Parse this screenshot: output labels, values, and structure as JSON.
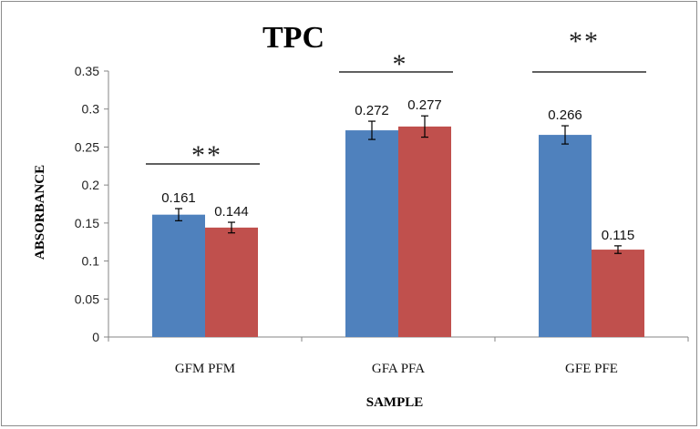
{
  "chart_data": {
    "type": "bar",
    "title": "TPC",
    "xlabel": "SAMPLE",
    "ylabel": "ABSORBANCE",
    "ylim": [
      0,
      0.35
    ],
    "yticks": [
      "0",
      "0.05",
      "0.1",
      "0.15",
      "0.2",
      "0.25",
      "0.3",
      "0.35"
    ],
    "categories": [
      "GFM PFM",
      "GFA PFA",
      "GFE PFE"
    ],
    "series": [
      {
        "color": "#4f81bd",
        "values": [
          0.161,
          0.272,
          0.266
        ],
        "errors": [
          0.008,
          0.012,
          0.012
        ]
      },
      {
        "color": "#c0504d",
        "values": [
          0.144,
          0.277,
          0.115
        ],
        "errors": [
          0.007,
          0.014,
          0.005
        ]
      }
    ],
    "data_labels": [
      [
        "0.161",
        "0.272",
        "0.266"
      ],
      [
        "0.144",
        "0.277",
        "0.115"
      ]
    ],
    "significance": [
      "**",
      "*",
      "**"
    ],
    "grid": false,
    "legend": "none"
  }
}
